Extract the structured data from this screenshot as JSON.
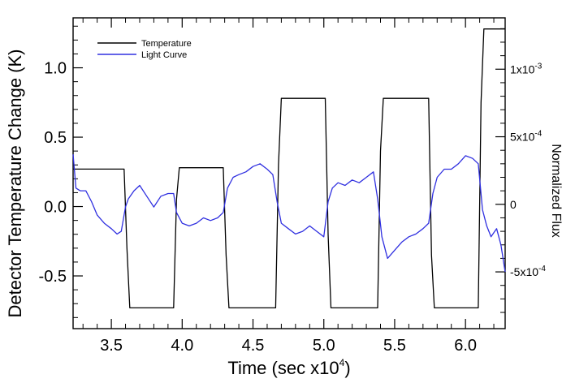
{
  "chart_data": {
    "type": "line",
    "xlabel_base": "Time (sec x10",
    "xlabel_exp": "4",
    "xlabel_tail": ")",
    "ylabel": "Detector Temperature Change (K)",
    "ylabel_right": "Normalized Flux",
    "xlim": [
      3.23,
      6.28
    ],
    "ylim": [
      -0.88,
      1.36
    ],
    "ylim_right": [
      -0.00092,
      0.00138
    ],
    "x_ticks": [
      3.5,
      4.0,
      4.5,
      5.0,
      5.5,
      6.0
    ],
    "x_tick_labels": [
      "3.5",
      "4.0",
      "4.5",
      "5.0",
      "5.5",
      "6.0"
    ],
    "y_ticks": [
      -0.5,
      0.0,
      0.5,
      1.0
    ],
    "y_tick_labels": [
      "-0.5",
      "0.0",
      "0.5",
      "1.0"
    ],
    "y_right_ticks": [
      -0.0005,
      0.0,
      0.0005,
      0.001
    ],
    "y_right_tick_labels": [
      {
        "base": "-5x10",
        "exp": "-4"
      },
      {
        "base": "0",
        "exp": ""
      },
      {
        "base": "5x10",
        "exp": "-4"
      },
      {
        "base": "1x10",
        "exp": "-3"
      }
    ],
    "legend": [
      {
        "label": "Temperature",
        "color": "#000000"
      },
      {
        "label": "Light Curve",
        "color": "#3030e0"
      }
    ],
    "legend_position": "top-left",
    "series": [
      {
        "name": "Temperature",
        "axis": "left",
        "color": "#000000",
        "x": [
          3.23,
          3.59,
          3.61,
          3.63,
          3.94,
          3.96,
          3.98,
          4.29,
          4.31,
          4.33,
          4.66,
          4.68,
          4.7,
          5.01,
          5.03,
          5.05,
          5.38,
          5.4,
          5.42,
          5.74,
          5.76,
          5.78,
          6.09,
          6.11,
          6.13,
          6.28
        ],
        "y": [
          0.27,
          0.27,
          -0.3,
          -0.73,
          -0.73,
          0.05,
          0.28,
          0.28,
          -0.35,
          -0.73,
          -0.73,
          0.3,
          0.78,
          0.78,
          -0.2,
          -0.73,
          -0.73,
          0.4,
          0.78,
          0.78,
          -0.35,
          -0.73,
          -0.73,
          0.75,
          1.28,
          1.28
        ]
      },
      {
        "name": "Light Curve",
        "axis": "right",
        "color": "#3030e0",
        "x": [
          3.23,
          3.25,
          3.28,
          3.32,
          3.36,
          3.4,
          3.45,
          3.5,
          3.54,
          3.57,
          3.6,
          3.62,
          3.66,
          3.7,
          3.75,
          3.8,
          3.85,
          3.9,
          3.94,
          3.96,
          4.0,
          4.05,
          4.1,
          4.15,
          4.2,
          4.25,
          4.29,
          4.32,
          4.36,
          4.4,
          4.45,
          4.5,
          4.55,
          4.6,
          4.64,
          4.67,
          4.7,
          4.75,
          4.8,
          4.85,
          4.9,
          4.95,
          5.0,
          5.03,
          5.06,
          5.1,
          5.15,
          5.2,
          5.25,
          5.3,
          5.35,
          5.38,
          5.41,
          5.45,
          5.5,
          5.55,
          5.6,
          5.65,
          5.7,
          5.74,
          5.77,
          5.8,
          5.85,
          5.9,
          5.95,
          6.0,
          6.05,
          6.09,
          6.12,
          6.15,
          6.18,
          6.22,
          6.25,
          6.28
        ],
        "y": [
          0.00037,
          0.00012,
          0.0001,
          0.0001,
          2e-05,
          -8e-05,
          -0.00014,
          -0.00018,
          -0.00022,
          -0.0002,
          -2e-05,
          4e-05,
          0.0001,
          0.00014,
          6e-05,
          -2e-05,
          6e-05,
          8e-05,
          8e-05,
          -6e-05,
          -0.00014,
          -0.00016,
          -0.00014,
          -0.0001,
          -0.00012,
          -0.0001,
          -6e-05,
          0.00012,
          0.0002,
          0.00022,
          0.00024,
          0.00028,
          0.0003,
          0.00026,
          0.00022,
          2e-05,
          -0.00014,
          -0.00018,
          -0.00022,
          -0.0002,
          -0.00016,
          -0.0002,
          -0.00024,
          2e-05,
          0.00012,
          0.00016,
          0.00014,
          0.00018,
          0.00016,
          0.0002,
          0.00024,
          4e-05,
          -0.00024,
          -0.0004,
          -0.00034,
          -0.00028,
          -0.00024,
          -0.00022,
          -0.00018,
          -0.00014,
          8e-05,
          0.0002,
          0.00026,
          0.00026,
          0.0003,
          0.00036,
          0.00034,
          0.0003,
          -4e-05,
          -0.00016,
          -0.00024,
          -0.00018,
          -0.0003,
          -0.0005
        ]
      }
    ]
  }
}
